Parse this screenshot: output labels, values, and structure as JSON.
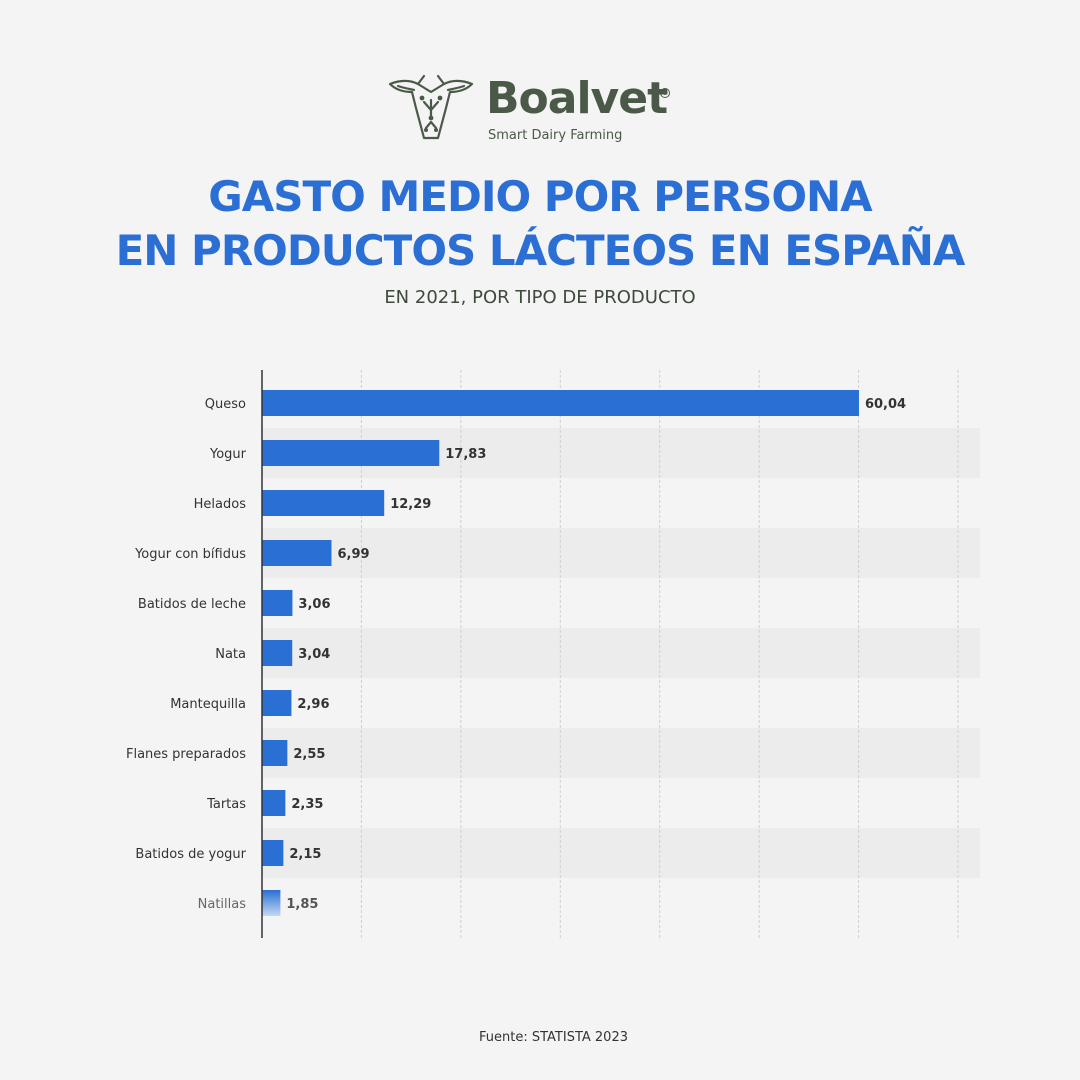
{
  "brand": {
    "name": "Boalvet",
    "tagline": "Smart Dairy Farming",
    "registered_mark": "®"
  },
  "title_lines": [
    "GASTO MEDIO POR PERSONA",
    "EN PRODUCTOS LÁCTEOS EN ESPAÑA"
  ],
  "subtitle": "EN 2021, POR TIPO DE PRODUCTO",
  "source": "Fuente: STATISTA 2023",
  "colors": {
    "title": "#2b6fd4",
    "bar": "#2a6fd3",
    "brand": "#4b5a48"
  },
  "chart_data": {
    "type": "bar",
    "orientation": "horizontal",
    "categories": [
      "Queso",
      "Yogur",
      "Helados",
      "Yogur con bífidus",
      "Batidos de leche",
      "Nata",
      "Mantequilla",
      "Flanes preparados",
      "Tartas",
      "Batidos de yogur",
      "Natillas"
    ],
    "values": [
      60.04,
      17.83,
      12.29,
      6.99,
      3.06,
      3.04,
      2.96,
      2.55,
      2.35,
      2.15,
      1.85
    ],
    "value_labels": [
      "60,04",
      "17,83",
      "12,29",
      "6,99",
      "3,06",
      "3,04",
      "2,96",
      "2,55",
      "2,35",
      "2,15",
      "1,85"
    ],
    "xlim": [
      0,
      70
    ],
    "grid": true
  }
}
